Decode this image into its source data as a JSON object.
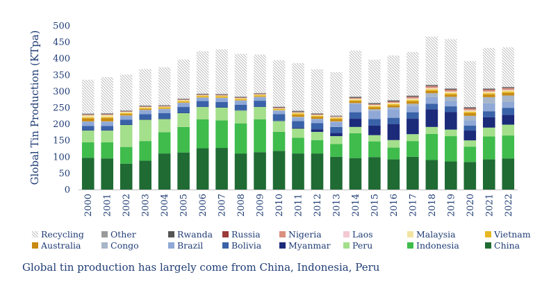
{
  "chart_data": {
    "type": "bar",
    "stacked": true,
    "title": "",
    "ylabel": "Global Tin Production (KTpa)",
    "xlabel": "",
    "ylim": [
      0,
      500
    ],
    "yticks": [
      0,
      50,
      100,
      150,
      200,
      250,
      300,
      350,
      400,
      450,
      500
    ],
    "categories": [
      "2000",
      "2001",
      "2002",
      "2003",
      "2004",
      "2005",
      "2006",
      "2007",
      "2008",
      "2009",
      "2010",
      "2011",
      "2012",
      "2013",
      "2014",
      "2015",
      "2016",
      "2017",
      "2018",
      "2019",
      "2020",
      "2021",
      "2022"
    ],
    "series": [
      {
        "name": "China",
        "color": "#1f6b33",
        "values": [
          97,
          95,
          79,
          88,
          110,
          113,
          126,
          127,
          110,
          114,
          118,
          110,
          110,
          100,
          96,
          99,
          92,
          100,
          90,
          86,
          84,
          92,
          95
        ]
      },
      {
        "name": "Indonesia",
        "color": "#3fbc4c",
        "values": [
          47,
          49,
          51,
          60,
          65,
          78,
          88,
          84,
          92,
          100,
          58,
          48,
          41,
          39,
          76,
          48,
          36,
          48,
          80,
          77,
          47,
          70,
          70
        ]
      },
      {
        "name": "Peru",
        "color": "#a4df8c",
        "values": [
          36,
          36,
          67,
          65,
          40,
          42,
          38,
          39,
          39,
          38,
          33,
          28,
          25,
          24,
          19,
          19,
          23,
          21,
          21,
          20,
          19,
          27,
          33
        ]
      },
      {
        "name": "Myanmar",
        "color": "#1c2a7a",
        "values": [
          1,
          1,
          1,
          1,
          1,
          1,
          1,
          1,
          1,
          1,
          1,
          3,
          8,
          10,
          25,
          29,
          49,
          47,
          54,
          54,
          30,
          32,
          30
        ]
      },
      {
        "name": "Bolivia",
        "color": "#3a62a8",
        "values": [
          13,
          13,
          15,
          16,
          17,
          18,
          17,
          16,
          17,
          18,
          20,
          20,
          19,
          18,
          20,
          20,
          19,
          20,
          17,
          17,
          15,
          18,
          21
        ]
      },
      {
        "name": "Brazil",
        "color": "#8fa8d6",
        "values": [
          13,
          13,
          12,
          12,
          12,
          12,
          10,
          12,
          12,
          10,
          10,
          11,
          11,
          15,
          25,
          25,
          26,
          18,
          20,
          16,
          16,
          24,
          18
        ]
      },
      {
        "name": "Congo",
        "color": "#a7b6c8",
        "values": [
          1,
          1,
          1,
          1,
          1,
          1,
          1,
          1,
          1,
          2,
          2,
          2,
          2,
          2,
          3,
          5,
          6,
          8,
          12,
          13,
          14,
          19,
          20
        ]
      },
      {
        "name": "Australia",
        "color": "#c98a12",
        "values": [
          9,
          10,
          4,
          3,
          1,
          1,
          1,
          1,
          1,
          1,
          1,
          6,
          6,
          7,
          6,
          6,
          6,
          7,
          7,
          7,
          8,
          8,
          8
        ]
      },
      {
        "name": "Vietnam",
        "color": "#e6b824",
        "values": [
          3,
          3,
          3,
          3,
          4,
          4,
          4,
          4,
          4,
          4,
          3,
          4,
          3,
          3,
          3,
          3,
          4,
          4,
          4,
          4,
          4,
          4,
          4
        ]
      },
      {
        "name": "Malaysia",
        "color": "#f2e3a3",
        "values": [
          7,
          7,
          4,
          3,
          2,
          3,
          2,
          2,
          2,
          2,
          2,
          3,
          3,
          3,
          4,
          4,
          4,
          4,
          4,
          4,
          4,
          4,
          4
        ]
      },
      {
        "name": "Laos",
        "color": "#f2c9d2",
        "values": [
          0,
          0,
          0,
          0,
          0,
          0,
          0,
          0,
          0,
          0,
          0,
          0,
          0,
          0,
          0,
          0,
          0,
          1,
          1,
          1,
          1,
          1,
          1
        ]
      },
      {
        "name": "Nigeria",
        "color": "#d9907f",
        "values": [
          1,
          1,
          1,
          1,
          1,
          1,
          1,
          1,
          1,
          1,
          1,
          1,
          1,
          1,
          2,
          2,
          3,
          4,
          5,
          5,
          5,
          5,
          5
        ]
      },
      {
        "name": "Russia",
        "color": "#9c3a3a",
        "values": [
          1,
          1,
          1,
          1,
          1,
          1,
          1,
          1,
          1,
          1,
          1,
          1,
          1,
          1,
          1,
          1,
          1,
          1,
          1,
          1,
          1,
          1,
          1
        ]
      },
      {
        "name": "Rwanda",
        "color": "#555555",
        "values": [
          1,
          1,
          1,
          1,
          1,
          1,
          1,
          1,
          1,
          1,
          1,
          2,
          1,
          1,
          2,
          2,
          2,
          2,
          2,
          2,
          2,
          2,
          2
        ]
      },
      {
        "name": "Other",
        "color": "#9a9a9a",
        "values": [
          2,
          2,
          2,
          2,
          2,
          2,
          2,
          2,
          2,
          2,
          2,
          2,
          2,
          2,
          2,
          2,
          2,
          2,
          2,
          2,
          2,
          2,
          2
        ]
      },
      {
        "name": "Recycling",
        "color": "#d9d9d9",
        "pattern": "hatch",
        "values": [
          103,
          110,
          109,
          111,
          115,
          119,
          129,
          136,
          130,
          117,
          142,
          145,
          134,
          132,
          140,
          131,
          136,
          133,
          147,
          150,
          140,
          123,
          120
        ]
      }
    ],
    "legend": {
      "position": "bottom",
      "rows": [
        [
          "Recycling",
          "Other",
          "Rwanda",
          "Russia",
          "Nigeria",
          "Laos",
          "Malaysia",
          "Vietnam"
        ],
        [
          "Australia",
          "Congo",
          "Brazil",
          "Bolivia",
          "Myanmar",
          "Peru",
          "Indonesia",
          "China"
        ]
      ]
    },
    "caption": "Global tin production has largely come from China, Indonesia, Peru"
  }
}
